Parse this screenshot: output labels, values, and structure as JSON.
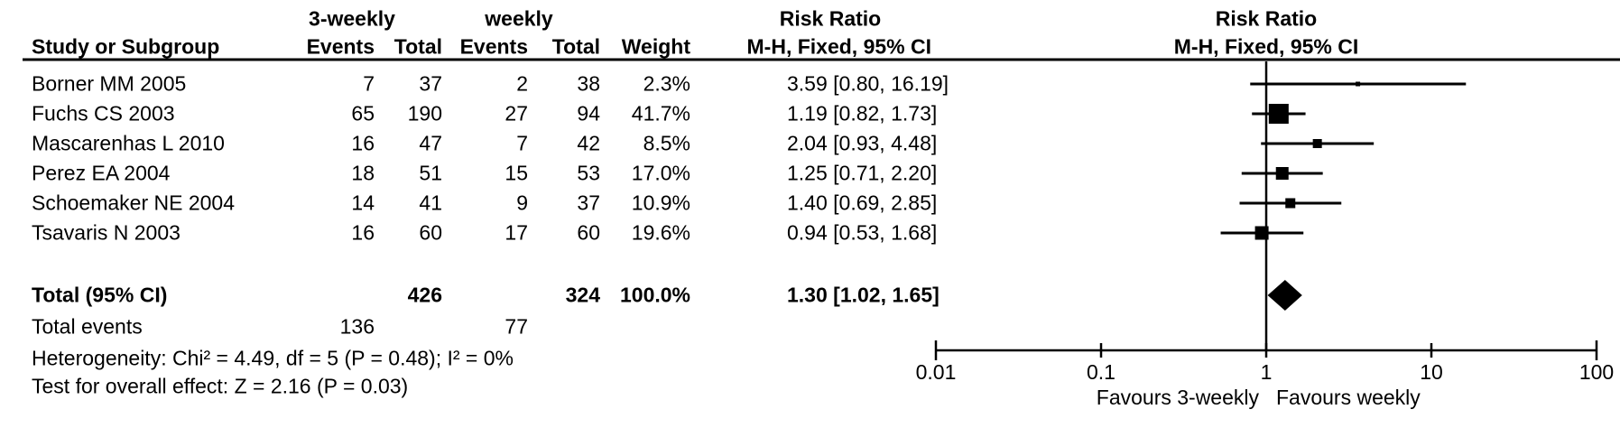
{
  "headers": {
    "group1": "3-weekly",
    "group2": "weekly",
    "col_study": "Study or Subgroup",
    "col_events": "Events",
    "col_total": "Total",
    "col_weight": "Weight",
    "risk_ratio": "Risk Ratio",
    "mh_fixed": "M-H, Fixed, 95% CI"
  },
  "chart_data": {
    "type": "forest",
    "effect_measure": "Risk Ratio",
    "method": "Mantel-Haenszel Fixed effect, 95% CI",
    "x_scale": "log",
    "axis_ticks": [
      0.01,
      0.1,
      1,
      10,
      100
    ],
    "axis_tick_labels": [
      "0.01",
      "0.1",
      "1",
      "10",
      "100"
    ],
    "favours_left": "Favours 3-weekly",
    "favours_right": "Favours weekly",
    "studies": [
      {
        "name": "Borner MM 2005",
        "events1": 7,
        "total1": 37,
        "events2": 2,
        "total2": 38,
        "weight": "2.3%",
        "weight_pct": 2.3,
        "rr": 3.59,
        "ci_low": 0.8,
        "ci_high": 16.19,
        "rr_text": "3.59 [0.80, 16.19]"
      },
      {
        "name": "Fuchs CS 2003",
        "events1": 65,
        "total1": 190,
        "events2": 27,
        "total2": 94,
        "weight": "41.7%",
        "weight_pct": 41.7,
        "rr": 1.19,
        "ci_low": 0.82,
        "ci_high": 1.73,
        "rr_text": "1.19 [0.82, 1.73]"
      },
      {
        "name": "Mascarenhas L 2010",
        "events1": 16,
        "total1": 47,
        "events2": 7,
        "total2": 42,
        "weight": "8.5%",
        "weight_pct": 8.5,
        "rr": 2.04,
        "ci_low": 0.93,
        "ci_high": 4.48,
        "rr_text": "2.04 [0.93, 4.48]"
      },
      {
        "name": "Perez EA 2004",
        "events1": 18,
        "total1": 51,
        "events2": 15,
        "total2": 53,
        "weight": "17.0%",
        "weight_pct": 17.0,
        "rr": 1.25,
        "ci_low": 0.71,
        "ci_high": 2.2,
        "rr_text": "1.25 [0.71, 2.20]"
      },
      {
        "name": "Schoemaker NE 2004",
        "events1": 14,
        "total1": 41,
        "events2": 9,
        "total2": 37,
        "weight": "10.9%",
        "weight_pct": 10.9,
        "rr": 1.4,
        "ci_low": 0.69,
        "ci_high": 2.85,
        "rr_text": "1.40 [0.69, 2.85]"
      },
      {
        "name": "Tsavaris N 2003",
        "events1": 16,
        "total1": 60,
        "events2": 17,
        "total2": 60,
        "weight": "19.6%",
        "weight_pct": 19.6,
        "rr": 0.94,
        "ci_low": 0.53,
        "ci_high": 1.68,
        "rr_text": "0.94 [0.53, 1.68]"
      }
    ],
    "total": {
      "label": "Total (95% CI)",
      "total1": 426,
      "total2": 324,
      "weight": "100.0%",
      "rr": 1.3,
      "ci_low": 1.02,
      "ci_high": 1.65,
      "rr_text": "1.30 [1.02, 1.65]"
    },
    "total_events": {
      "label": "Total events",
      "events1": 136,
      "events2": 77
    }
  },
  "footer": {
    "heterogeneity": "Heterogeneity: Chi² = 4.49, df = 5 (P = 0.48); I² = 0%",
    "overall_effect": "Test for overall effect: Z = 2.16 (P = 0.03)"
  },
  "colors": {
    "ink": "#000000",
    "background": "#ffffff"
  }
}
